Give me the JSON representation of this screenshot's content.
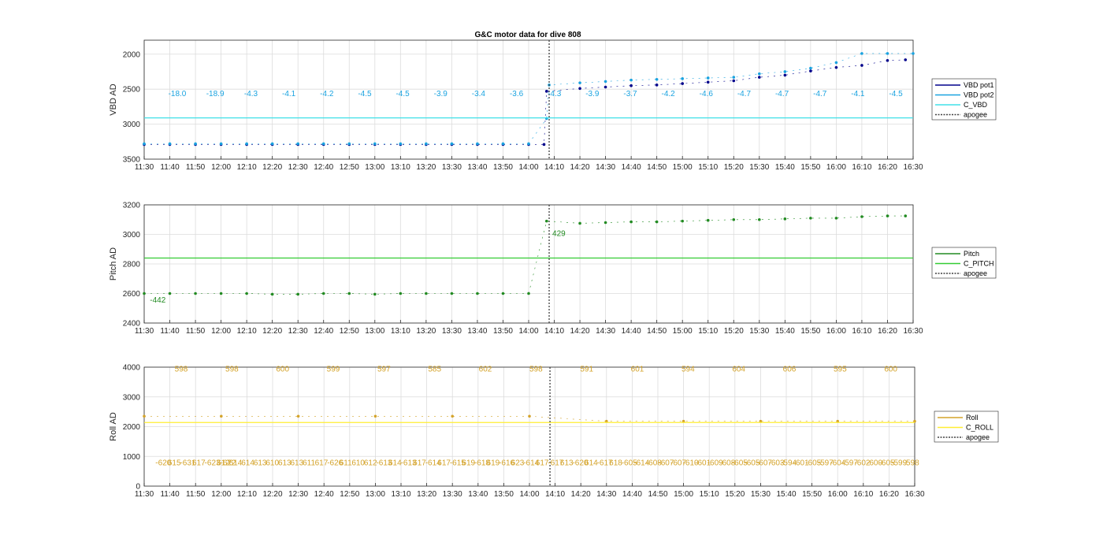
{
  "title": "G&C motor data for dive 808",
  "x_tick_labels": [
    "11:30",
    "11:40",
    "11:50",
    "12:00",
    "12:10",
    "12:20",
    "12:30",
    "12:40",
    "12:50",
    "13:00",
    "13:10",
    "13:20",
    "13:30",
    "13:40",
    "13:50",
    "14:00",
    "14:10",
    "14:20",
    "14:30",
    "14:40",
    "14:50",
    "15:00",
    "15:10",
    "15:20",
    "15:30",
    "15:40",
    "15:50",
    "16:00",
    "16:10",
    "16:20",
    "16:30"
  ],
  "colors": {
    "vbd_pot1": "#00008b",
    "vbd_pot2": "#1aa3e0",
    "c_vbd": "#40e0e8",
    "pitch": "#228b22",
    "c_pitch": "#33cc33",
    "roll": "#d4a32a",
    "c_roll": "#ffee33",
    "apogee": "#404040",
    "grid": "#dcdcdc"
  },
  "chart_data": [
    {
      "type": "line",
      "ylabel": "VBD AD",
      "xlim": [
        "11:30",
        "16:30"
      ],
      "ylim": [
        3500,
        1800
      ],
      "y_reversed": true,
      "yticks": [
        2000,
        2500,
        3000,
        3500
      ],
      "legend": [
        "VBD pot1",
        "VBD pot2",
        "C_VBD",
        "apogee"
      ],
      "legend_placement": "outside-right",
      "grid": true,
      "apogee_time": "14:08",
      "series": [
        {
          "name": "VBD pot1",
          "color": "vbd_pot1",
          "x": [
            "11:30",
            "11:40",
            "11:50",
            "12:00",
            "12:10",
            "12:20",
            "12:30",
            "12:40",
            "12:50",
            "13:00",
            "13:10",
            "13:20",
            "13:30",
            "13:40",
            "13:50",
            "14:00",
            "14:06",
            "14:07",
            "14:20",
            "14:30",
            "14:40",
            "14:50",
            "15:00",
            "15:10",
            "15:20",
            "15:30",
            "15:40",
            "15:50",
            "16:00",
            "16:10",
            "16:20",
            "16:27"
          ],
          "y": [
            3290,
            3290,
            3290,
            3290,
            3290,
            3290,
            3290,
            3290,
            3290,
            3290,
            3290,
            3290,
            3290,
            3290,
            3290,
            3290,
            3290,
            2530,
            2490,
            2470,
            2450,
            2440,
            2420,
            2400,
            2380,
            2330,
            2300,
            2240,
            2190,
            2160,
            2090,
            2080
          ]
        },
        {
          "name": "VBD pot2",
          "color": "vbd_pot2",
          "x": [
            "11:30",
            "11:40",
            "11:50",
            "12:00",
            "12:10",
            "12:20",
            "12:30",
            "12:40",
            "12:50",
            "13:00",
            "13:10",
            "13:20",
            "13:30",
            "13:40",
            "13:50",
            "14:00",
            "14:07",
            "14:08",
            "14:20",
            "14:30",
            "14:40",
            "14:50",
            "15:00",
            "15:10",
            "15:20",
            "15:30",
            "15:40",
            "15:50",
            "16:00",
            "16:10",
            "16:20",
            "16:30"
          ],
          "y": [
            3280,
            3280,
            3280,
            3280,
            3280,
            3280,
            3280,
            3280,
            3280,
            3280,
            3280,
            3280,
            3280,
            3280,
            3280,
            3280,
            2920,
            2440,
            2410,
            2390,
            2370,
            2360,
            2350,
            2340,
            2330,
            2280,
            2250,
            2200,
            2120,
            1990,
            1990,
            1990
          ]
        },
        {
          "name": "C_VBD",
          "color": "c_vbd",
          "x": [
            "11:30",
            "16:30"
          ],
          "y": [
            2910,
            2910
          ]
        }
      ],
      "annotations": [
        "-18.0",
        "-18.9",
        "-4.3",
        "-4.1",
        "-4.2",
        "-4.5",
        "-4.5",
        "-3.9",
        "-3.4",
        "-3.6",
        "-4.3",
        "-3.9",
        "-3.7",
        "-4.2",
        "-4.6",
        "-4.7",
        "-4.7",
        "-4.7",
        "-4.1",
        "-4.5"
      ]
    },
    {
      "type": "line",
      "ylabel": "Pitch AD",
      "xlim": [
        "11:30",
        "16:30"
      ],
      "ylim": [
        2400,
        3200
      ],
      "yticks": [
        2400,
        2600,
        2800,
        3000,
        3200
      ],
      "legend": [
        "Pitch",
        "C_PITCH",
        "apogee"
      ],
      "legend_placement": "outside-right",
      "grid": true,
      "apogee_time": "14:08",
      "series": [
        {
          "name": "Pitch",
          "color": "pitch",
          "x": [
            "11:30",
            "11:40",
            "11:50",
            "12:00",
            "12:10",
            "12:20",
            "12:30",
            "12:40",
            "12:50",
            "13:00",
            "13:10",
            "13:20",
            "13:30",
            "13:40",
            "13:50",
            "14:00",
            "14:07",
            "14:20",
            "14:30",
            "14:40",
            "14:50",
            "15:00",
            "15:10",
            "15:20",
            "15:30",
            "15:40",
            "15:50",
            "16:00",
            "16:10",
            "16:20",
            "16:27"
          ],
          "y": [
            2600,
            2600,
            2600,
            2600,
            2600,
            2595,
            2595,
            2600,
            2600,
            2595,
            2600,
            2600,
            2600,
            2600,
            2600,
            2600,
            3090,
            3075,
            3080,
            3085,
            3085,
            3090,
            3095,
            3100,
            3100,
            3105,
            3110,
            3110,
            3120,
            3125,
            3125
          ]
        },
        {
          "name": "C_PITCH",
          "color": "c_pitch",
          "x": [
            "11:30",
            "16:30"
          ],
          "y": [
            2840,
            2840
          ]
        }
      ],
      "annotations": [
        "-442",
        "429"
      ]
    },
    {
      "type": "line",
      "ylabel": "Roll AD",
      "xlim": [
        "11:30",
        "16:30"
      ],
      "ylim": [
        0,
        4000
      ],
      "yticks": [
        0,
        1000,
        2000,
        3000,
        4000
      ],
      "legend": [
        "Roll",
        "C_ROLL",
        "apogee"
      ],
      "legend_placement": "outside-right",
      "grid": true,
      "apogee_time": "14:08",
      "series": [
        {
          "name": "Roll",
          "color": "roll",
          "x": [
            "11:30",
            "12:00",
            "12:30",
            "13:00",
            "13:30",
            "14:00",
            "14:30",
            "15:00",
            "15:30",
            "16:00",
            "16:30"
          ],
          "y": [
            2350,
            2350,
            2350,
            2350,
            2350,
            2350,
            2180,
            2180,
            2180,
            2180,
            2180
          ]
        },
        {
          "name": "C_ROLL",
          "color": "c_roll",
          "x": [
            "11:30",
            "16:30"
          ],
          "y": [
            2140,
            2140
          ]
        }
      ],
      "annotations_top": [
        "598",
        "598",
        "600",
        "599",
        "597",
        "585",
        "602",
        "598",
        "591",
        "601",
        "594",
        "604",
        "606",
        "595",
        "600"
      ],
      "annotations_bottom": [
        "-620",
        "615",
        "-631",
        "617",
        "-623-622",
        "612",
        "614",
        "614",
        "613",
        "610",
        "613",
        "613",
        "611",
        "617",
        "-626",
        "611",
        "610",
        "612",
        "-613",
        "614",
        "-613",
        "617",
        "-614",
        "617",
        "-615",
        "619",
        "-618",
        "619",
        "-616",
        "623",
        "-614",
        "617",
        "-617",
        "613",
        "-620",
        "614",
        "-617",
        "618",
        "-605",
        "-614",
        "-608",
        "-607",
        "-607",
        "-610",
        "-601",
        "-609",
        "-608",
        "-605",
        "-605",
        "-607",
        "-603",
        "-594",
        "-601",
        "-605",
        "-597",
        "-604",
        "-597",
        "-602",
        "-600",
        "-605",
        "-599",
        "-598"
      ]
    }
  ]
}
